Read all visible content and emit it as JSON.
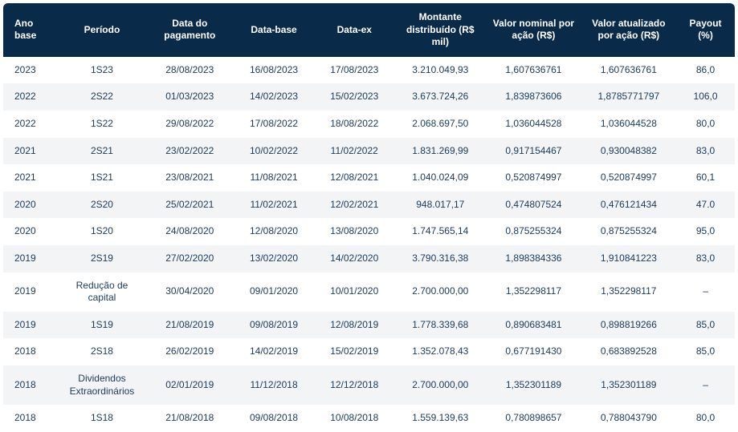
{
  "table": {
    "header_bg": "#0a2a4a",
    "header_text_color": "#ffffff",
    "row_text_color": "#1a3a5a",
    "row_even_bg": "#f2f4f6",
    "row_odd_bg": "#ffffff",
    "font_size_header": 12,
    "font_size_body": 12,
    "columns": [
      "Ano base",
      "Período",
      "Data do pagamento",
      "Data-base",
      "Data-ex",
      "Montante distribuído (R$ mil)",
      "Valor nominal por ação (R$)",
      "Valor atualizado por ação (R$)",
      "Payout (%)"
    ],
    "rows": [
      [
        "2023",
        "1S23",
        "28/08/2023",
        "16/08/2023",
        "17/08/2023",
        "3.210.049,93",
        "1,607636761",
        "1,607636761",
        "86,0"
      ],
      [
        "2022",
        "2S22",
        "01/03/2023",
        "14/02/2023",
        "15/02/2023",
        "3.673.724,26",
        "1,839873606",
        "1,8785771797",
        "106,0"
      ],
      [
        "2022",
        "1S22",
        "29/08/2022",
        "17/08/2022",
        "18/08/2022",
        "2.068.697,50",
        "1,036044528",
        "1,036044528",
        "80,0"
      ],
      [
        "2021",
        "2S21",
        "23/02/2022",
        "10/02/2022",
        "11/02/2022",
        "1.831.269,99",
        "0,917154467",
        "0,930048382",
        "83,0"
      ],
      [
        "2021",
        "1S21",
        "23/08/2021",
        "11/08/2021",
        "12/08/2021",
        "1.040.024,09",
        "0,520874997",
        "0,520874997",
        "60,1"
      ],
      [
        "2020",
        "2S20",
        "25/02/2021",
        "11/02/2021",
        "12/02/2021",
        "948.017,17",
        "0,474807524",
        "0,476121434",
        "47.0"
      ],
      [
        "2020",
        "1S20",
        "24/08/2020",
        "12/08/2020",
        "13/08/2020",
        "1.747.565,14",
        "0,875255324",
        "0,875255324",
        "95,0"
      ],
      [
        "2019",
        "2S19",
        "27/02/2020",
        "13/02/2020",
        "14/02/2020",
        "3.790.316,38",
        "1,898384336",
        "1,910841223",
        "83,0"
      ],
      [
        "2019",
        "Redução de capital",
        "30/04/2020",
        "09/01/2020",
        "10/01/2020",
        "2.700.000,00",
        "1,352298117",
        "1,352298117",
        "–"
      ],
      [
        "2019",
        "1S19",
        "21/08/2019",
        "09/08/2019",
        "12/08/2019",
        "1.778.339,68",
        "0,890683481",
        "0,898819266",
        "85,0"
      ],
      [
        "2018",
        "2S18",
        "26/02/2019",
        "14/02/2019",
        "15/02/2019",
        "1.352.078,43",
        "0,677191430",
        "0,683892528",
        "85,0"
      ],
      [
        "2018",
        "Dividendos Extraordinários",
        "02/01/2019",
        "11/12/2018",
        "12/12/2018",
        "2.700.000,00",
        "1,352301189",
        "1,352301189",
        "–"
      ],
      [
        "2018",
        "1S18",
        "21/08/2018",
        "09/08/2018",
        "10/08/2018",
        "1.559.139,63",
        "0,780898657",
        "0,788043790",
        "80,0"
      ]
    ]
  }
}
